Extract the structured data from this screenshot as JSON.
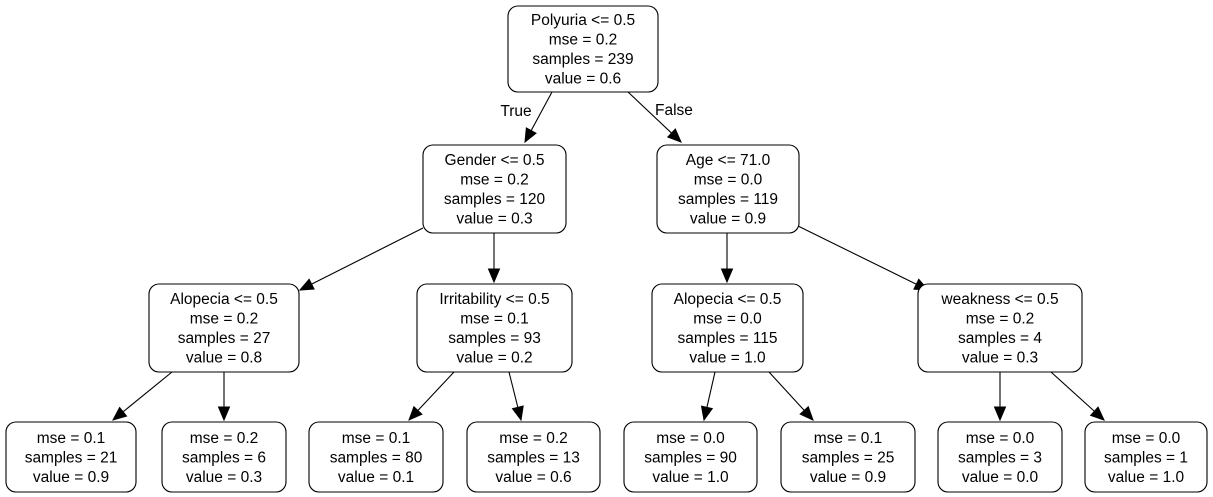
{
  "nodes": [
    {
      "id": "n0",
      "lines": [
        "Polyuria <= 0.5",
        "mse = 0.2",
        "samples = 239",
        "value = 0.6"
      ]
    },
    {
      "id": "n1",
      "lines": [
        "Gender <= 0.5",
        "mse = 0.2",
        "samples = 120",
        "value = 0.3"
      ]
    },
    {
      "id": "n2",
      "lines": [
        "Age <= 71.0",
        "mse = 0.0",
        "samples = 119",
        "value = 0.9"
      ]
    },
    {
      "id": "n3",
      "lines": [
        "Alopecia <= 0.5",
        "mse = 0.2",
        "samples = 27",
        "value = 0.8"
      ]
    },
    {
      "id": "n4",
      "lines": [
        "Irritability <= 0.5",
        "mse = 0.1",
        "samples = 93",
        "value = 0.2"
      ]
    },
    {
      "id": "n5",
      "lines": [
        "Alopecia <= 0.5",
        "mse = 0.0",
        "samples = 115",
        "value = 1.0"
      ]
    },
    {
      "id": "n6",
      "lines": [
        "weakness <= 0.5",
        "mse = 0.2",
        "samples = 4",
        "value = 0.3"
      ]
    },
    {
      "id": "n7",
      "lines": [
        "mse = 0.1",
        "samples = 21",
        "value = 0.9"
      ]
    },
    {
      "id": "n8",
      "lines": [
        "mse = 0.2",
        "samples = 6",
        "value = 0.3"
      ]
    },
    {
      "id": "n9",
      "lines": [
        "mse = 0.1",
        "samples = 80",
        "value = 0.1"
      ]
    },
    {
      "id": "n10",
      "lines": [
        "mse = 0.2",
        "samples = 13",
        "value = 0.6"
      ]
    },
    {
      "id": "n11",
      "lines": [
        "mse = 0.0",
        "samples = 90",
        "value = 1.0"
      ]
    },
    {
      "id": "n12",
      "lines": [
        "mse = 0.1",
        "samples = 25",
        "value = 0.9"
      ]
    },
    {
      "id": "n13",
      "lines": [
        "mse = 0.0",
        "samples = 3",
        "value = 0.0"
      ]
    },
    {
      "id": "n14",
      "lines": [
        "mse = 0.0",
        "samples = 1",
        "value = 1.0"
      ]
    }
  ],
  "edges": [
    {
      "from": "n0",
      "to": "n1",
      "label": "True"
    },
    {
      "from": "n0",
      "to": "n2",
      "label": "False"
    },
    {
      "from": "n1",
      "to": "n3",
      "label": ""
    },
    {
      "from": "n1",
      "to": "n4",
      "label": ""
    },
    {
      "from": "n2",
      "to": "n5",
      "label": ""
    },
    {
      "from": "n2",
      "to": "n6",
      "label": ""
    },
    {
      "from": "n3",
      "to": "n7",
      "label": ""
    },
    {
      "from": "n3",
      "to": "n8",
      "label": ""
    },
    {
      "from": "n4",
      "to": "n9",
      "label": ""
    },
    {
      "from": "n4",
      "to": "n10",
      "label": ""
    },
    {
      "from": "n5",
      "to": "n11",
      "label": ""
    },
    {
      "from": "n5",
      "to": "n12",
      "label": ""
    },
    {
      "from": "n6",
      "to": "n13",
      "label": ""
    },
    {
      "from": "n6",
      "to": "n14",
      "label": ""
    }
  ]
}
